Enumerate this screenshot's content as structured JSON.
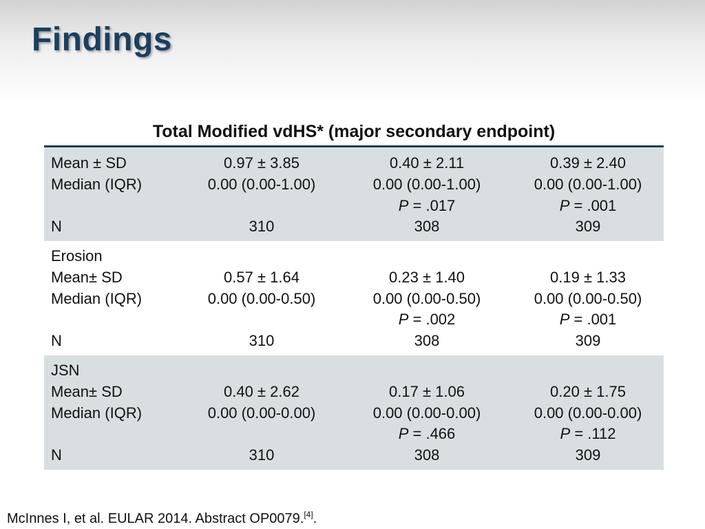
{
  "slide": {
    "title": "Findings",
    "table_title": "Total Modified vdHS*  (major secondary endpoint)"
  },
  "sections": [
    {
      "heading": "",
      "rows": [
        {
          "label": "Mean ± SD",
          "c1": "0.97 ± 3.85",
          "c2": "0.40 ± 2.11",
          "c3": "0.39 ± 2.40"
        },
        {
          "label": "Median (IQR)",
          "c1": "0.00 (0.00-1.00)",
          "c2": "0.00 (0.00-1.00)",
          "c3": "0.00 (0.00-1.00)"
        },
        {
          "label": "",
          "c1": "",
          "c2_p": "P",
          "c2_v": " = .017",
          "c3_p": "P",
          "c3_v": " = .001"
        },
        {
          "label": "N",
          "c1": "310",
          "c2": "308",
          "c3": "309"
        }
      ]
    },
    {
      "heading": "Erosion",
      "rows": [
        {
          "label": "Mean± SD",
          "c1": "0.57 ± 1.64",
          "c2": "0.23 ± 1.40",
          "c3": "0.19 ± 1.33"
        },
        {
          "label": "Median (IQR)",
          "c1": "0.00 (0.00-0.50)",
          "c2": "0.00 (0.00-0.50)",
          "c3": "0.00 (0.00-0.50)"
        },
        {
          "label": "",
          "c1": "",
          "c2_p": "P",
          "c2_v": " = .002",
          "c3_p": "P",
          "c3_v": " = .001"
        },
        {
          "label": "N",
          "c1": "310",
          "c2": "308",
          "c3": "309"
        }
      ]
    },
    {
      "heading": "JSN",
      "rows": [
        {
          "label": "Mean± SD",
          "c1": "0.40 ± 2.62",
          "c2": "0.17 ± 1.06",
          "c3": "0.20 ± 1.75"
        },
        {
          "label": "Median (IQR)",
          "c1": "0.00 (0.00-0.00)",
          "c2": "0.00 (0.00-0.00)",
          "c3": "0.00 (0.00-0.00)"
        },
        {
          "label": "",
          "c1": "",
          "c2_p": "P",
          "c2_v": " = .466",
          "c3_p": "P",
          "c3_v": " = .112"
        },
        {
          "label": "N",
          "c1": "310",
          "c2": "308",
          "c3": "309"
        }
      ]
    }
  ],
  "footer": {
    "citation": "McInnes I, et al. EULAR 2014. Abstract OP0079.",
    "ref": "[4]",
    "end": "."
  },
  "colors": {
    "title": "#1b3f5f",
    "rule": "#1f3b5c",
    "shade": "#d9dfe0"
  }
}
